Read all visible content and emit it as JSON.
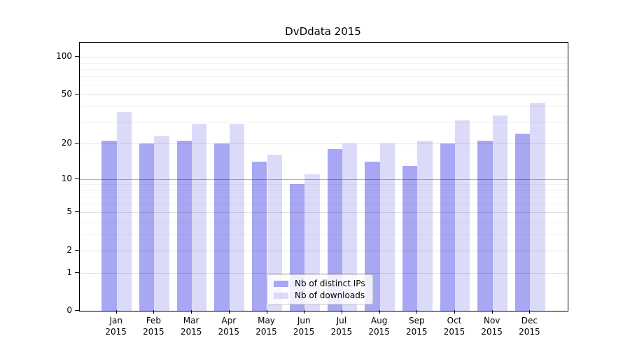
{
  "figure": {
    "title": "DvDdata 2015"
  },
  "chart_data": {
    "type": "bar",
    "title": "DvDdata 2015",
    "xlabel": "",
    "ylabel": "",
    "categories": [
      "Jan",
      "Feb",
      "Mar",
      "Apr",
      "May",
      "Jun",
      "Jul",
      "Aug",
      "Sep",
      "Oct",
      "Nov",
      "Dec"
    ],
    "category_year": "2015",
    "series": [
      {
        "name": "Nb of distinct IPs",
        "color": "#a7a7f3",
        "values": [
          21,
          20,
          21,
          20,
          14,
          9,
          18,
          14,
          13,
          20,
          21,
          24
        ]
      },
      {
        "name": "Nb of downloads",
        "color": "#dbdbf9",
        "values": [
          36,
          23,
          29,
          29,
          16,
          11,
          20,
          20,
          21,
          31,
          34,
          43
        ]
      }
    ],
    "yscale": "log1p",
    "ylim": [
      0,
      130
    ],
    "y_major_ticks": [
      0,
      1,
      2,
      5,
      10,
      20,
      50,
      100
    ],
    "y_major_tick_labels": [
      "0",
      "1",
      "2",
      "5",
      "10",
      "20",
      "50",
      "100"
    ],
    "y_minor_gridlines": [
      3,
      4,
      6,
      7,
      8,
      9,
      30,
      40,
      60,
      70,
      80,
      90
    ],
    "emphasized_gridline": 10,
    "grid": "both",
    "legend_position": "lower-center"
  }
}
